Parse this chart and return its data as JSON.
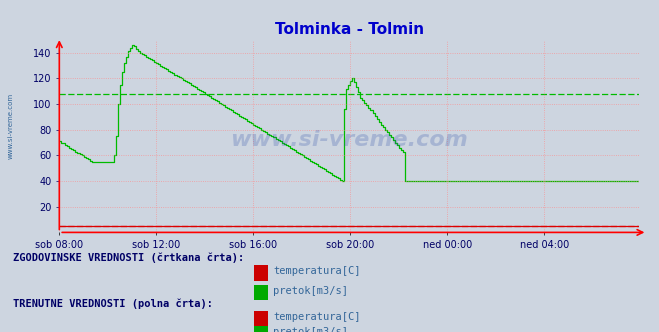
{
  "title": "Tolminka - Tolmin",
  "title_color": "#0000cc",
  "fig_bg_color": "#cdd5e0",
  "plot_bg_color": "#cdd5e0",
  "ylim": [
    0,
    150
  ],
  "yticks": [
    20,
    40,
    60,
    80,
    100,
    120,
    140
  ],
  "grid_color": "#ff8888",
  "watermark": "www.si-vreme.com",
  "watermark_color": "#3355aa",
  "watermark_alpha": 0.25,
  "xtick_labels": [
    "sob 08:00",
    "sob 12:00",
    "sob 16:00",
    "sob 20:00",
    "ned 00:00",
    "ned 04:00"
  ],
  "xtick_positions": [
    0,
    48,
    96,
    144,
    192,
    240
  ],
  "n_points": 288,
  "legend_hist_label": "ZGODOVINSKE VREDNOSTI (črtkana črta):",
  "legend_curr_label": "TRENUTNE VREDNOSTI (polna črta):",
  "legend_temp": "temperatura[C]",
  "legend_pretok": "pretok[m3/s]",
  "temp_color": "#dd0000",
  "pretok_color": "#00bb00",
  "tick_color": "#000066",
  "pretok_current": [
    71,
    70,
    70,
    68,
    67,
    66,
    65,
    64,
    63,
    62,
    61,
    60,
    59,
    58,
    57,
    56,
    55,
    55,
    55,
    55,
    55,
    55,
    55,
    55,
    55,
    55,
    55,
    60,
    75,
    100,
    115,
    125,
    132,
    137,
    141,
    144,
    146,
    145,
    143,
    141,
    140,
    139,
    138,
    137,
    136,
    135,
    134,
    133,
    132,
    131,
    130,
    129,
    128,
    127,
    126,
    125,
    124,
    123,
    122,
    121,
    120,
    119,
    118,
    117,
    116,
    115,
    114,
    113,
    112,
    111,
    110,
    109,
    108,
    107,
    106,
    105,
    104,
    103,
    102,
    101,
    100,
    99,
    98,
    97,
    96,
    95,
    94,
    93,
    92,
    91,
    90,
    89,
    88,
    87,
    86,
    85,
    84,
    83,
    82,
    81,
    80,
    79,
    78,
    77,
    76,
    75,
    74,
    73,
    72,
    71,
    70,
    69,
    68,
    67,
    66,
    65,
    64,
    63,
    62,
    61,
    60,
    59,
    58,
    57,
    56,
    55,
    54,
    53,
    52,
    51,
    50,
    49,
    48,
    47,
    46,
    45,
    44,
    43,
    42,
    41,
    40,
    40,
    40,
    40,
    40,
    40,
    40,
    40,
    40,
    40,
    40,
    40,
    40,
    40,
    40,
    40,
    40,
    40,
    40,
    40,
    40,
    40,
    40,
    40,
    40,
    40,
    40,
    40,
    40,
    40,
    40,
    40,
    40,
    40,
    40,
    40,
    40,
    40,
    40,
    40,
    40,
    40,
    40,
    40,
    40,
    40,
    40,
    40,
    40,
    40,
    40,
    40,
    40,
    40,
    40,
    40,
    40,
    40,
    40,
    40,
    40,
    40,
    40,
    40,
    40,
    40,
    40,
    40,
    40,
    40,
    40,
    40,
    40,
    40,
    40,
    40,
    40,
    40,
    40,
    40,
    40,
    40,
    40,
    40,
    40,
    40,
    40,
    40,
    40,
    40,
    40,
    40,
    40,
    40,
    40,
    40,
    40,
    40,
    40,
    40,
    40,
    40,
    40,
    40,
    40,
    40,
    40,
    40,
    40,
    40,
    40,
    40,
    40,
    40,
    40,
    40,
    40,
    40,
    40,
    40,
    40,
    40,
    40,
    40,
    40,
    40,
    40,
    40,
    40,
    40,
    40,
    40,
    40,
    40,
    40,
    40,
    40,
    40,
    40,
    40,
    40,
    40,
    40,
    40,
    40,
    40,
    40,
    40
  ],
  "pretok_hist": [
    108,
    108,
    108,
    108,
    108,
    108,
    108,
    108,
    108,
    108,
    108,
    108,
    108,
    108,
    108,
    108,
    108,
    108,
    108,
    108,
    108,
    108,
    108,
    108,
    108,
    108,
    108,
    108,
    108,
    108,
    108,
    108,
    108,
    108,
    108,
    108,
    108,
    108,
    108,
    108,
    108,
    108,
    108,
    108,
    108,
    108,
    108,
    108,
    108,
    108,
    108,
    108,
    108,
    108,
    108,
    108,
    108,
    108,
    108,
    108,
    108,
    108,
    108,
    108,
    108,
    108,
    108,
    108,
    108,
    108,
    108,
    108,
    108,
    108,
    108,
    108,
    108,
    108,
    108,
    108,
    108,
    108,
    108,
    108,
    108,
    108,
    108,
    108,
    108,
    108,
    108,
    108,
    108,
    108,
    108,
    108,
    108,
    108,
    108,
    108,
    108,
    108,
    108,
    108,
    108,
    108,
    108,
    108,
    108,
    108,
    108,
    108,
    108,
    108,
    108,
    108,
    108,
    108,
    108,
    108,
    108,
    108,
    108,
    108,
    108,
    108,
    108,
    108,
    108,
    108,
    108,
    108,
    108,
    108,
    108,
    108,
    108,
    108,
    108,
    108,
    108,
    108,
    108,
    108,
    108,
    108,
    108,
    108,
    108,
    108,
    108,
    108,
    108,
    108,
    108,
    108,
    108,
    108,
    108,
    108,
    108,
    108,
    108,
    108,
    108,
    108,
    108,
    108,
    108,
    108,
    108,
    108,
    108,
    108,
    108,
    108,
    108,
    108,
    108,
    108,
    108,
    108,
    108,
    108,
    108,
    108,
    108,
    108,
    108,
    108,
    108,
    108,
    108,
    108,
    108,
    108,
    108,
    108,
    108,
    108,
    108,
    108,
    108,
    108,
    108,
    108,
    108,
    108,
    108,
    108,
    108,
    108,
    108,
    108,
    108,
    108,
    108,
    108,
    108,
    108,
    108,
    108,
    108,
    108,
    108,
    108,
    108,
    108,
    108,
    108,
    108,
    108,
    108,
    108,
    108,
    108,
    108,
    108,
    108,
    108,
    108,
    108,
    108,
    108,
    108,
    108,
    108,
    108,
    108,
    108,
    108,
    108,
    108,
    108,
    108,
    108,
    108,
    108,
    108,
    108,
    108,
    108,
    108,
    108,
    108,
    108,
    108,
    108,
    108,
    108,
    108,
    108,
    108,
    108,
    108,
    108,
    108,
    108,
    108,
    108,
    108,
    108,
    108,
    108,
    108,
    108,
    108,
    108
  ],
  "temp_current": 5,
  "temp_hist": 5,
  "pretok_spike": [
    96,
    112,
    115,
    118,
    120,
    117,
    113,
    109,
    105,
    103,
    101,
    99,
    97,
    95,
    93,
    91,
    88,
    86,
    84,
    82,
    80,
    78,
    76,
    74,
    72,
    70,
    68,
    66,
    64,
    63
  ],
  "spike_start": 141
}
